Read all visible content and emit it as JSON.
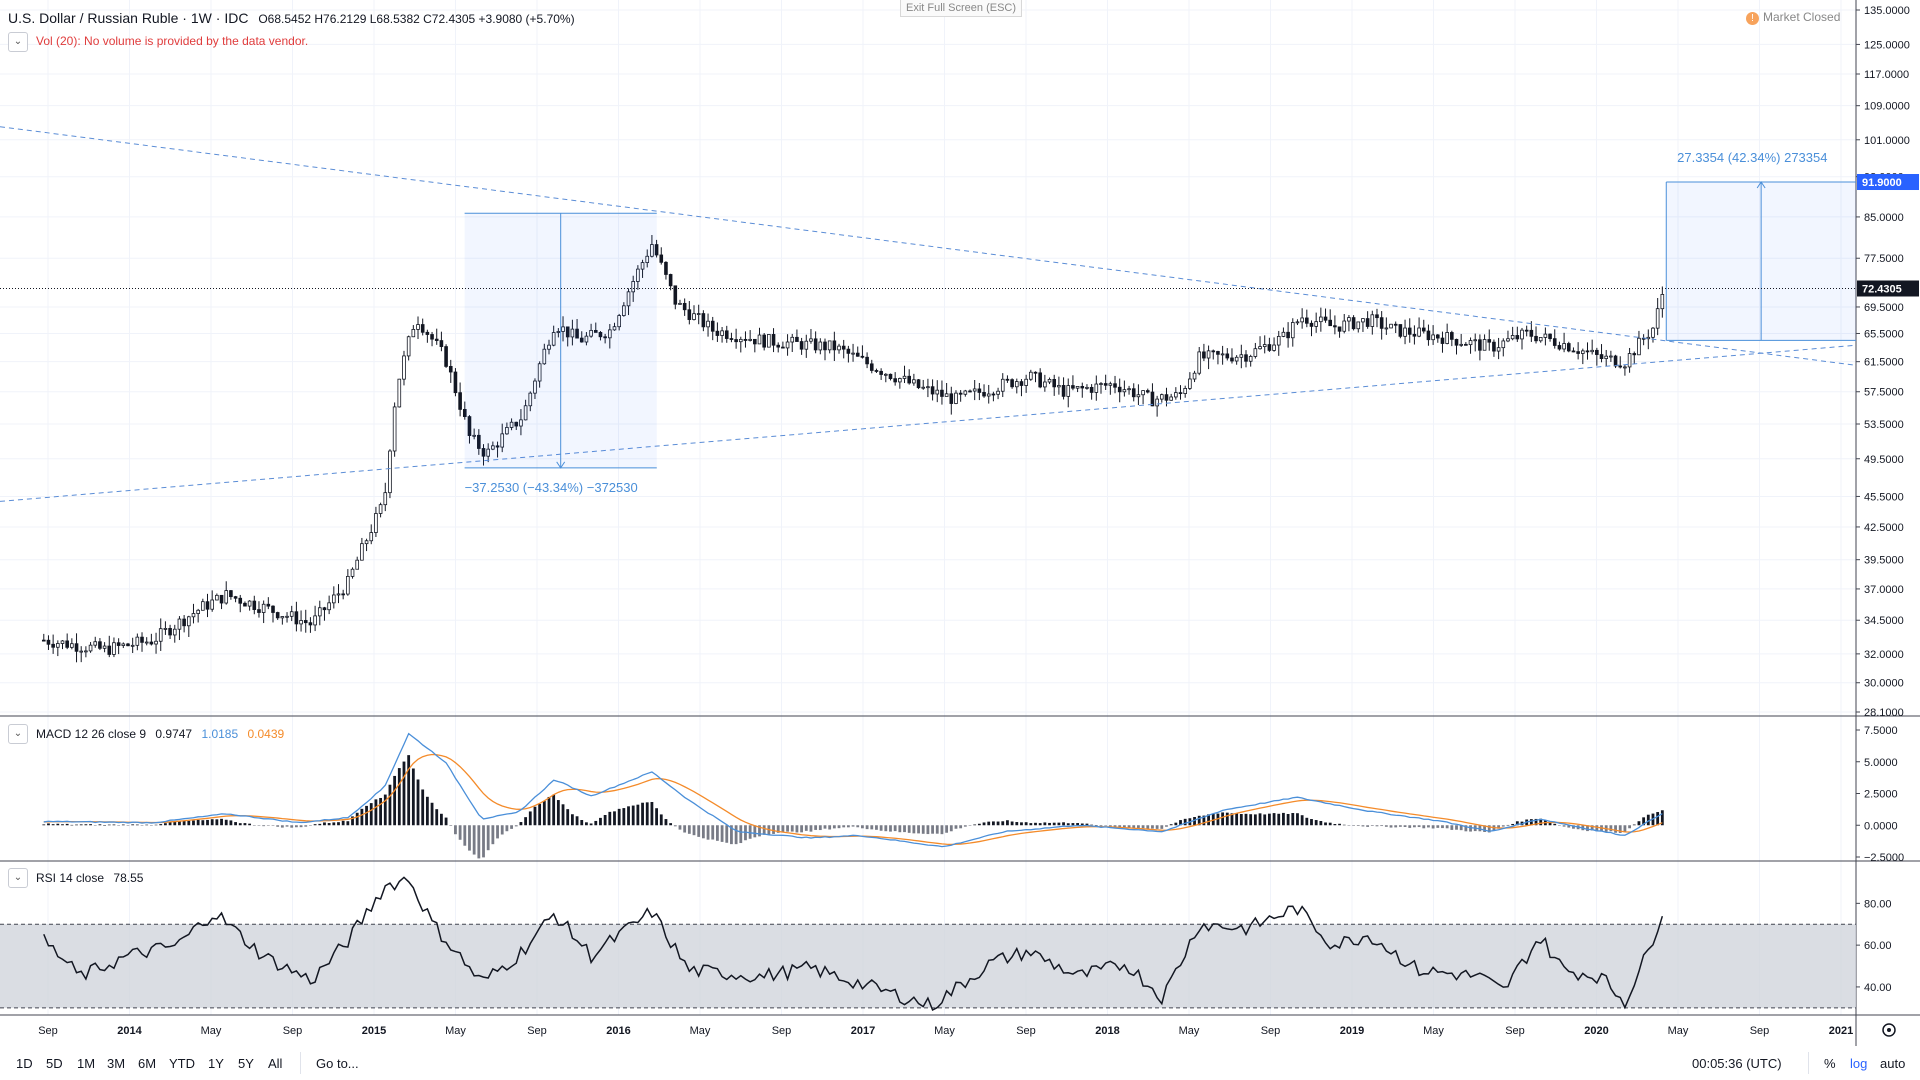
{
  "header": {
    "symbol": "U.S. Dollar / Russian Ruble",
    "interval": "1W",
    "exchange": "IDC",
    "ohlc": "O68.5452 H76.2129 L68.5382 C72.4305 +3.9080 (+5.70%)",
    "volume_note": "Vol (20): No volume is provided by the data vendor.",
    "exit_fullscreen": "Exit Full Screen (ESC)",
    "market_status": "Market Closed",
    "market_icon": "!"
  },
  "macd_legend": {
    "label": "MACD 12 26 close 9",
    "v1": "0.9747",
    "v2": "1.0185",
    "v3": "0.0439"
  },
  "rsi_legend": {
    "label": "RSI 14 close",
    "value": "78.55"
  },
  "bottom": {
    "timeframes": [
      "1D",
      "5D",
      "1M",
      "3M",
      "6M",
      "YTD",
      "1Y",
      "5Y",
      "All"
    ],
    "goto": "Go to...",
    "clock": "00:05:36 (UTC)",
    "percent": "%",
    "log": "log",
    "auto": "auto"
  },
  "colors": {
    "blue": "#4a8fd9",
    "orange": "#f48b2a",
    "candle": "#131722",
    "accent": "#2962ff"
  },
  "chart_data": [
    {
      "type": "candlestick",
      "title": "U.S. Dollar / Russian Ruble",
      "y_scale": "log",
      "ylim": [
        28.1,
        135.0
      ],
      "y_ticks": [
        "135.0000",
        "125.0000",
        "117.0000",
        "109.0000",
        "101.0000",
        "93.0000",
        "85.0000",
        "77.5000",
        "69.5000",
        "65.5000",
        "61.5000",
        "57.5000",
        "53.5000",
        "49.5000",
        "45.5000",
        "42.5000",
        "39.5000",
        "37.0000",
        "34.5000",
        "32.0000",
        "30.0000",
        "28.1000"
      ],
      "x_ticks": [
        "Sep",
        "2014",
        "May",
        "Sep",
        "2015",
        "May",
        "Sep",
        "2016",
        "May",
        "Sep",
        "2017",
        "May",
        "Sep",
        "2018",
        "May",
        "Sep",
        "2019",
        "May",
        "Sep",
        "2020",
        "May",
        "Sep",
        "2021"
      ],
      "last_price": "72.4305",
      "target_price": "91.9000",
      "measure_down": "−37.2530 (−43.34%) −372530",
      "measure_up": "27.3354 (42.34%) 273354",
      "anchors": [
        {
          "t": 2013.55,
          "v": 33.0
        },
        {
          "t": 2013.8,
          "v": 32.3
        },
        {
          "t": 2014.0,
          "v": 33.0
        },
        {
          "t": 2014.2,
          "v": 35.5
        },
        {
          "t": 2014.3,
          "v": 36.5
        },
        {
          "t": 2014.5,
          "v": 35.2
        },
        {
          "t": 2014.65,
          "v": 34.2
        },
        {
          "t": 2014.8,
          "v": 37.5
        },
        {
          "t": 2014.95,
          "v": 45.0
        },
        {
          "t": 2015.0,
          "v": 58.0
        },
        {
          "t": 2015.08,
          "v": 68.0
        },
        {
          "t": 2015.2,
          "v": 62.0
        },
        {
          "t": 2015.3,
          "v": 52.0
        },
        {
          "t": 2015.37,
          "v": 50.0
        },
        {
          "t": 2015.52,
          "v": 54.5
        },
        {
          "t": 2015.65,
          "v": 67.0
        },
        {
          "t": 2015.75,
          "v": 64.5
        },
        {
          "t": 2015.88,
          "v": 66.0
        },
        {
          "t": 2016.05,
          "v": 80.0
        },
        {
          "t": 2016.15,
          "v": 70.0
        },
        {
          "t": 2016.3,
          "v": 66.0
        },
        {
          "t": 2016.5,
          "v": 64.5
        },
        {
          "t": 2016.8,
          "v": 63.5
        },
        {
          "t": 2016.95,
          "v": 61.0
        },
        {
          "t": 2017.15,
          "v": 58.0
        },
        {
          "t": 2017.3,
          "v": 56.5
        },
        {
          "t": 2017.45,
          "v": 58.0
        },
        {
          "t": 2017.6,
          "v": 59.5
        },
        {
          "t": 2017.75,
          "v": 57.5
        },
        {
          "t": 2017.95,
          "v": 58.5
        },
        {
          "t": 2018.1,
          "v": 56.5
        },
        {
          "t": 2018.22,
          "v": 57.0
        },
        {
          "t": 2018.3,
          "v": 62.0
        },
        {
          "t": 2018.5,
          "v": 62.5
        },
        {
          "t": 2018.65,
          "v": 65.0
        },
        {
          "t": 2018.72,
          "v": 68.0
        },
        {
          "t": 2018.85,
          "v": 66.5
        },
        {
          "t": 2019.0,
          "v": 67.5
        },
        {
          "t": 2019.1,
          "v": 66.0
        },
        {
          "t": 2019.3,
          "v": 65.0
        },
        {
          "t": 2019.5,
          "v": 63.5
        },
        {
          "t": 2019.65,
          "v": 65.5
        },
        {
          "t": 2019.8,
          "v": 64.0
        },
        {
          "t": 2019.95,
          "v": 62.0
        },
        {
          "t": 2020.05,
          "v": 61.5
        },
        {
          "t": 2020.12,
          "v": 64.5
        },
        {
          "t": 2020.17,
          "v": 66.5
        },
        {
          "t": 2020.21,
          "v": 72.43
        }
      ]
    },
    {
      "type": "line",
      "title": "MACD 12 26 close 9",
      "ylim": [
        -2.5,
        7.5
      ],
      "y_ticks": [
        "7.5000",
        "5.0000",
        "2.5000",
        "0.0000",
        "−2.5000"
      ],
      "series": [
        {
          "name": "MACD",
          "color": "#4a8fd9"
        },
        {
          "name": "Signal",
          "color": "#f48b2a"
        }
      ],
      "macd_anchors": [
        {
          "t": 2013.55,
          "v": 0.3
        },
        {
          "t": 2014.0,
          "v": 0.2
        },
        {
          "t": 2014.3,
          "v": 0.9
        },
        {
          "t": 2014.6,
          "v": 0.2
        },
        {
          "t": 2014.8,
          "v": 0.6
        },
        {
          "t": 2014.95,
          "v": 3.0
        },
        {
          "t": 2015.05,
          "v": 7.2
        },
        {
          "t": 2015.2,
          "v": 5.0
        },
        {
          "t": 2015.35,
          "v": 0.5
        },
        {
          "t": 2015.5,
          "v": 1.0
        },
        {
          "t": 2015.65,
          "v": 3.6
        },
        {
          "t": 2015.8,
          "v": 2.3
        },
        {
          "t": 2016.05,
          "v": 4.2
        },
        {
          "t": 2016.2,
          "v": 2.0
        },
        {
          "t": 2016.4,
          "v": -0.5
        },
        {
          "t": 2016.7,
          "v": -1.0
        },
        {
          "t": 2016.9,
          "v": -0.8
        },
        {
          "t": 2017.25,
          "v": -1.7
        },
        {
          "t": 2017.5,
          "v": -0.5
        },
        {
          "t": 2017.8,
          "v": 0.0
        },
        {
          "t": 2018.15,
          "v": -0.5
        },
        {
          "t": 2018.4,
          "v": 1.2
        },
        {
          "t": 2018.7,
          "v": 2.2
        },
        {
          "t": 2019.0,
          "v": 1.1
        },
        {
          "t": 2019.3,
          "v": 0.3
        },
        {
          "t": 2019.5,
          "v": -0.5
        },
        {
          "t": 2019.7,
          "v": 0.5
        },
        {
          "t": 2019.9,
          "v": -0.3
        },
        {
          "t": 2020.05,
          "v": -0.8
        },
        {
          "t": 2020.21,
          "v": 1.02
        }
      ],
      "hist_scale": 0.45
    },
    {
      "type": "line",
      "title": "RSI 14 close",
      "ylim": [
        28,
        95
      ],
      "y_ticks": [
        "80.00",
        "60.00",
        "40.00"
      ],
      "bands": [
        30,
        70
      ],
      "anchors": [
        {
          "t": 2013.55,
          "v": 62
        },
        {
          "t": 2013.7,
          "v": 45
        },
        {
          "t": 2013.9,
          "v": 55
        },
        {
          "t": 2014.1,
          "v": 60
        },
        {
          "t": 2014.25,
          "v": 76
        },
        {
          "t": 2014.45,
          "v": 55
        },
        {
          "t": 2014.65,
          "v": 43
        },
        {
          "t": 2014.8,
          "v": 62
        },
        {
          "t": 2014.95,
          "v": 88
        },
        {
          "t": 2015.05,
          "v": 92
        },
        {
          "t": 2015.15,
          "v": 70
        },
        {
          "t": 2015.35,
          "v": 42
        },
        {
          "t": 2015.5,
          "v": 55
        },
        {
          "t": 2015.65,
          "v": 75
        },
        {
          "t": 2015.8,
          "v": 55
        },
        {
          "t": 2016.05,
          "v": 76
        },
        {
          "t": 2016.2,
          "v": 48
        },
        {
          "t": 2016.5,
          "v": 45
        },
        {
          "t": 2016.7,
          "v": 49
        },
        {
          "t": 2016.95,
          "v": 40
        },
        {
          "t": 2017.2,
          "v": 31
        },
        {
          "t": 2017.45,
          "v": 52
        },
        {
          "t": 2017.6,
          "v": 57
        },
        {
          "t": 2017.8,
          "v": 45
        },
        {
          "t": 2018.0,
          "v": 51
        },
        {
          "t": 2018.15,
          "v": 35
        },
        {
          "t": 2018.3,
          "v": 70
        },
        {
          "t": 2018.5,
          "v": 68
        },
        {
          "t": 2018.7,
          "v": 78
        },
        {
          "t": 2018.85,
          "v": 60
        },
        {
          "t": 2019.0,
          "v": 65
        },
        {
          "t": 2019.2,
          "v": 48
        },
        {
          "t": 2019.45,
          "v": 45
        },
        {
          "t": 2019.55,
          "v": 38
        },
        {
          "t": 2019.7,
          "v": 64
        },
        {
          "t": 2019.8,
          "v": 48
        },
        {
          "t": 2019.95,
          "v": 45
        },
        {
          "t": 2020.05,
          "v": 33
        },
        {
          "t": 2020.15,
          "v": 58
        },
        {
          "t": 2020.21,
          "v": 78.55
        }
      ]
    }
  ]
}
